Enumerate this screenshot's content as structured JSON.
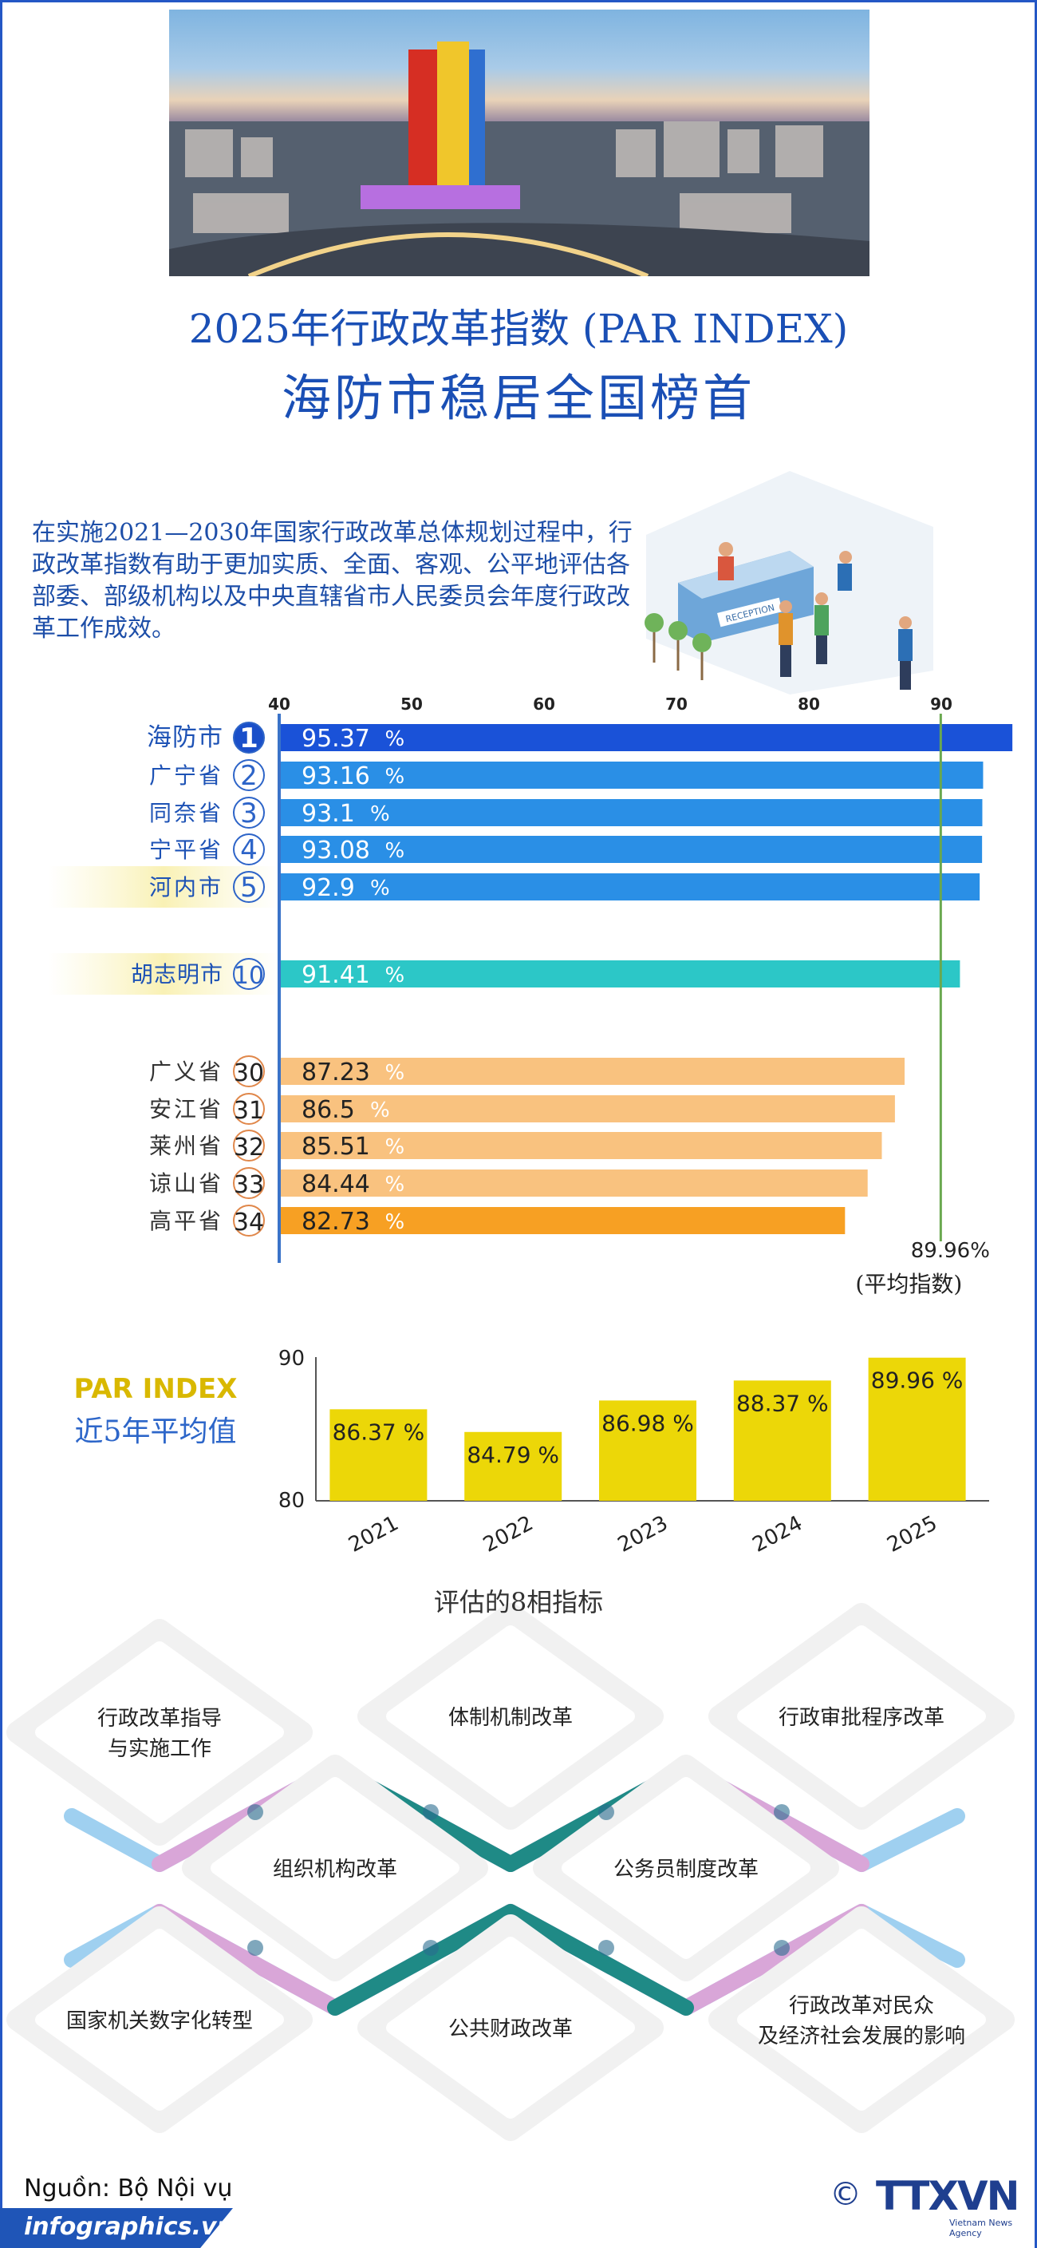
{
  "header": {
    "title_line1": "2025年行政改革指数 (PAR INDEX)",
    "title_line2": "海防市稳居全国榜首"
  },
  "intro": {
    "text": "在实施2021—2030年国家行政改革总体规划过程中，行政改革指数有助于更加实质、全面、客观、公平地评估各部委、部级机构以及中央直辖省市人民委员会年度行政改革工作成效。"
  },
  "reception_sign": "RECEPTION",
  "ranking_chart": {
    "type": "bar",
    "orientation": "horizontal",
    "xlim": [
      40,
      95
    ],
    "ticks": [
      40,
      50,
      60,
      70,
      80,
      90
    ],
    "value_suffix": "%",
    "average_value": 89.96,
    "average_label": "89.96%",
    "average_caption": "(平均指数)",
    "rows": [
      {
        "name": "海防市",
        "rank": "1",
        "value": 95.37,
        "label": "95.37",
        "group": "top1",
        "color": "#1a52d8"
      },
      {
        "name": "广宁省",
        "rank": "2",
        "value": 93.16,
        "label": "93.16",
        "group": "top",
        "color": "#2a8fe6"
      },
      {
        "name": "同奈省",
        "rank": "3",
        "value": 93.1,
        "label": "93.1",
        "group": "top",
        "color": "#2a8fe6"
      },
      {
        "name": "宁平省",
        "rank": "4",
        "value": 93.08,
        "label": "93.08",
        "group": "top",
        "color": "#2a8fe6"
      },
      {
        "name": "河内市",
        "rank": "5",
        "value": 92.9,
        "label": "92.9",
        "group": "top-highlight",
        "color": "#2a8fe6"
      },
      {
        "name": "胡志明市",
        "rank": "10",
        "value": 91.41,
        "label": "91.41",
        "group": "mid-highlight",
        "color": "#2cc7c7"
      },
      {
        "name": "广义省",
        "rank": "30",
        "value": 87.23,
        "label": "87.23",
        "group": "bottom",
        "color": "#f9c27f"
      },
      {
        "name": "安江省",
        "rank": "31",
        "value": 86.5,
        "label": "86.5",
        "group": "bottom",
        "color": "#f9c27f"
      },
      {
        "name": "莱州省",
        "rank": "32",
        "value": 85.51,
        "label": "85.51",
        "group": "bottom",
        "color": "#f9c27f"
      },
      {
        "name": "谅山省",
        "rank": "33",
        "value": 84.44,
        "label": "84.44",
        "group": "bottom",
        "color": "#f9c27f"
      },
      {
        "name": "高平省",
        "rank": "34",
        "value": 82.73,
        "label": "82.73",
        "group": "bottom-last",
        "color": "#f7a023"
      }
    ]
  },
  "par_chart": {
    "type": "bar",
    "label_line1": "PAR INDEX",
    "label_line2": "近5年平均值",
    "ylim": [
      80,
      90
    ],
    "ticks": [
      "90",
      "80"
    ],
    "categories": [
      "2021",
      "2022",
      "2023",
      "2024",
      "2025"
    ],
    "values": [
      86.37,
      84.79,
      86.98,
      88.37,
      89.96
    ],
    "value_labels": [
      "86.37 %",
      "84.79 %",
      "86.98 %",
      "88.37 %",
      "89.96 %"
    ],
    "color": "#ecd708"
  },
  "indicators": {
    "title": "评估的8相指标",
    "items": [
      {
        "lines": [
          "行政改革指导",
          "与实施工作"
        ]
      },
      {
        "lines": [
          "体制机制改革"
        ]
      },
      {
        "lines": [
          "行政审批程序改革"
        ]
      },
      {
        "lines": [
          "组织机构改革"
        ]
      },
      {
        "lines": [
          "公务员制度改革"
        ]
      },
      {
        "lines": [
          "国家机关数字化转型"
        ]
      },
      {
        "lines": [
          "公共财政改革"
        ]
      },
      {
        "lines": [
          "行政改革对民众",
          "及经济社会发展的影响"
        ]
      }
    ]
  },
  "footer": {
    "source": "Nguồn: Bộ Nội vụ",
    "site": "infographics.vn",
    "copyright": "©",
    "agency_logo": "TTXVN",
    "agency_sub": "Vietnam News Agency"
  }
}
